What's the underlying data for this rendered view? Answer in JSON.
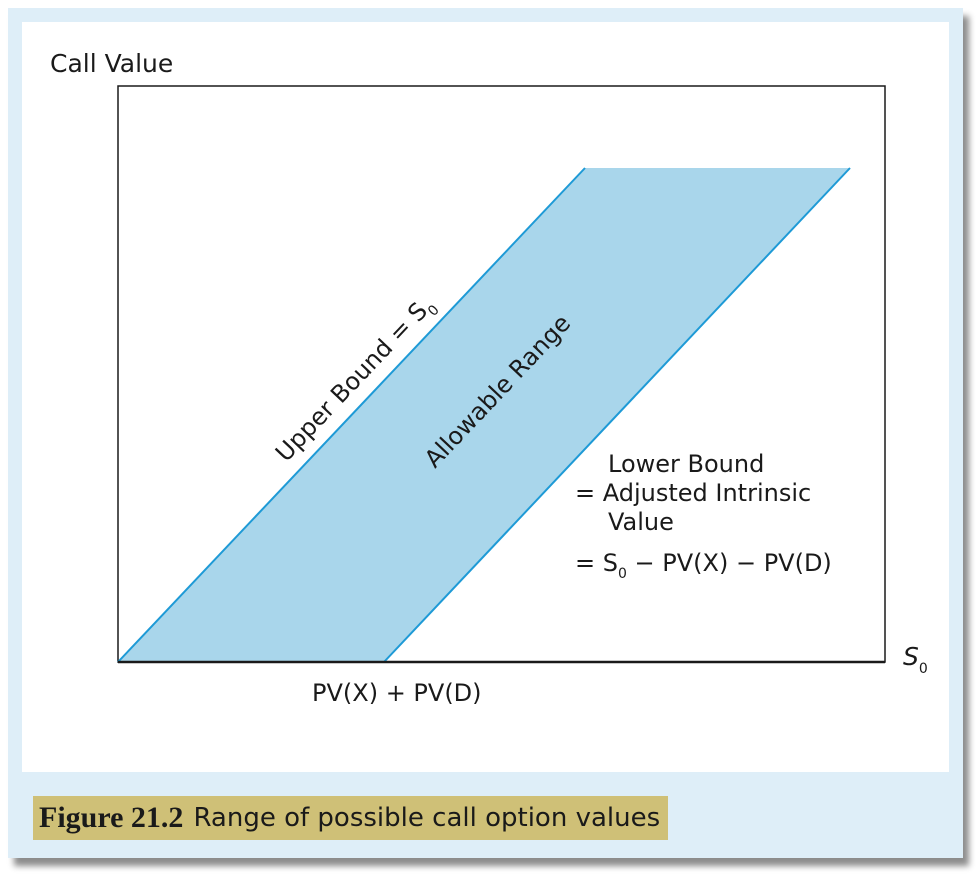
{
  "diagram": {
    "y_axis_label": "Call Value",
    "x_axis_label": "S",
    "x_axis_label_sub": "0",
    "upper_bound_label": "Upper Bound = S",
    "upper_bound_sub": "0",
    "band_label": "Allowable Range",
    "lower_bound": {
      "line1": "Lower Bound",
      "line2": "= Adjusted Intrinsic",
      "line3": "Value",
      "line4_prefix": "= S",
      "line4_sub": "0",
      "line4_suffix": " − PV(X) − PV(D)"
    },
    "x_intercept_label": "PV(X) + PV(D)",
    "colors": {
      "band_fill": "#a9d6eb",
      "bound_line": "#1e9ad6",
      "axis": "#1a1a1a",
      "background": "#deeef8",
      "caption_bg": "#cfc077"
    }
  },
  "caption": {
    "number": "Figure 21.2",
    "title": "Range of possible call option values"
  }
}
